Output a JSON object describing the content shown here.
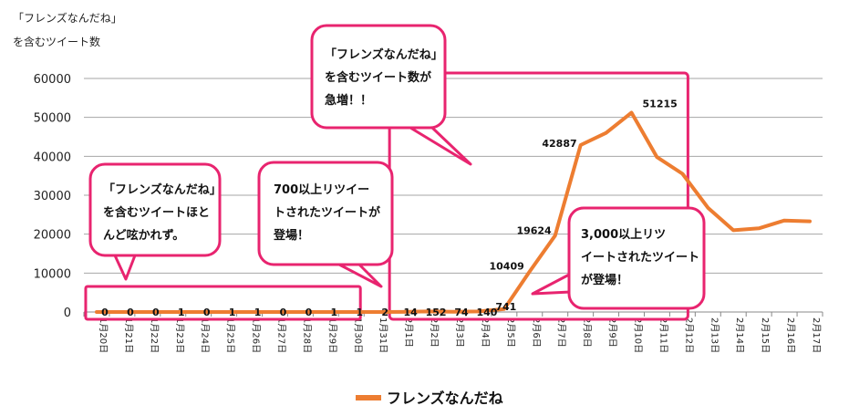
{
  "chart_data": {
    "type": "line",
    "ylabel_lines": [
      "「フレンズなんだね」",
      "を含むツイート数"
    ],
    "ylim": [
      0,
      60000
    ],
    "yticks": [
      0,
      10000,
      20000,
      30000,
      40000,
      50000,
      60000
    ],
    "grid": true,
    "legend": {
      "position": "bottom",
      "label": "フレンズなんだね"
    },
    "categories": [
      "1月20日",
      "1月21日",
      "1月22日",
      "1月23日",
      "1月24日",
      "1月25日",
      "1月26日",
      "1月27日",
      "1月28日",
      "1月29日",
      "1月30日",
      "1月31日",
      "2月1日",
      "2月2日",
      "2月3日",
      "2月4日",
      "2月5日",
      "2月6日",
      "2月7日",
      "2月8日",
      "2月9日",
      "2月10日",
      "2月11日",
      "2月12日",
      "2月13日",
      "2月14日",
      "2月15日",
      "2月16日",
      "2月17日"
    ],
    "series": [
      {
        "name": "フレンズなんだね",
        "color": "#ed7d31",
        "values": [
          0,
          0,
          0,
          1,
          0,
          1,
          1,
          0,
          0,
          1,
          1,
          2,
          14,
          152,
          74,
          140,
          741,
          10409,
          19624,
          42887,
          46000,
          51215,
          39800,
          35500,
          26800,
          21000,
          21500,
          23500,
          23300
        ]
      }
    ],
    "data_labels": [
      {
        "index": 0,
        "text": "0"
      },
      {
        "index": 1,
        "text": "0"
      },
      {
        "index": 2,
        "text": "0"
      },
      {
        "index": 3,
        "text": "1"
      },
      {
        "index": 4,
        "text": "0"
      },
      {
        "index": 5,
        "text": "1"
      },
      {
        "index": 6,
        "text": "1"
      },
      {
        "index": 7,
        "text": "0"
      },
      {
        "index": 8,
        "text": "0"
      },
      {
        "index": 9,
        "text": "1"
      },
      {
        "index": 10,
        "text": "1"
      },
      {
        "index": 11,
        "text": "2"
      },
      {
        "index": 12,
        "text": "14"
      },
      {
        "index": 13,
        "text": "152"
      },
      {
        "index": 14,
        "text": "74"
      },
      {
        "index": 15,
        "text": "140"
      },
      {
        "index": 16,
        "text": "741"
      },
      {
        "index": 17,
        "text": "10409"
      },
      {
        "index": 18,
        "text": "19624"
      },
      {
        "index": 19,
        "text": "42887"
      },
      {
        "index": 21,
        "text": "51215"
      }
    ],
    "callouts": [
      {
        "name": "callout-no-tweets",
        "lines": [
          "「フレンズなんだね」",
          "を含むツイートほと",
          "んど呟かれず。"
        ]
      },
      {
        "name": "callout-700-retweets",
        "lines": [
          "700以上リツイー",
          "トされたツイートが",
          "登場！"
        ]
      },
      {
        "name": "callout-surge",
        "lines": [
          "「フレンズなんだね」",
          "を含むツイート数が",
          "急増！！"
        ]
      },
      {
        "name": "callout-3000-retweets",
        "lines": [
          "3,000以上リツ",
          "イートされたツイート",
          "が登場！"
        ]
      }
    ],
    "highlight_color": "#e8246f"
  }
}
